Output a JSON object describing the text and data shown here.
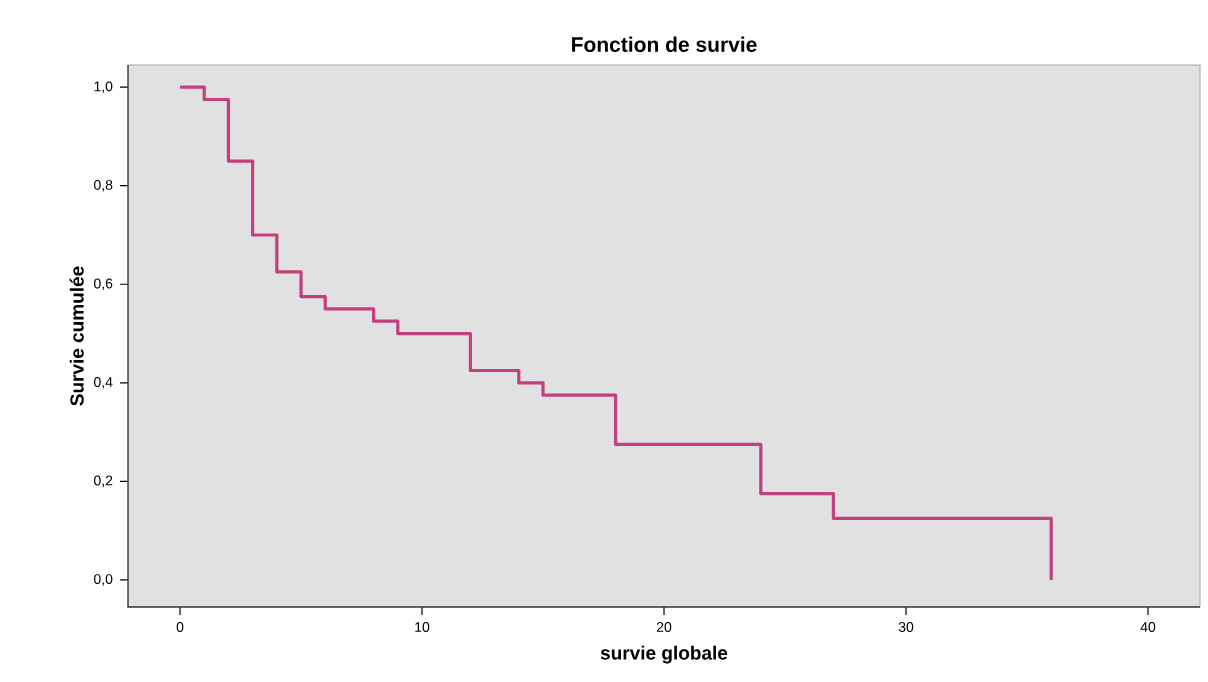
{
  "chart_data": {
    "type": "step",
    "title": "Fonction de survie",
    "xlabel": "survie globale",
    "ylabel": "Survie cumulée",
    "x": [
      0,
      1,
      2,
      3,
      4,
      5,
      6,
      8,
      9,
      12,
      14,
      15,
      18,
      24,
      27,
      36
    ],
    "series": [
      {
        "color": "#c2407f",
        "values": [
          1.0,
          0.975,
          0.85,
          0.7,
          0.625,
          0.575,
          0.55,
          0.525,
          0.5,
          0.425,
          0.4,
          0.375,
          0.275,
          0.175,
          0.125,
          0.0
        ]
      }
    ],
    "xlim": [
      -2.15,
      42.15
    ],
    "ylim": [
      -0.055,
      1.045
    ],
    "xticks": [
      0,
      10,
      20,
      30,
      40
    ],
    "yticks": [
      {
        "value": 0,
        "label": "0,0"
      },
      {
        "value": 0.2,
        "label": "0,2"
      },
      {
        "value": 0.4,
        "label": "0,4"
      },
      {
        "value": 0.6,
        "label": "0,6"
      },
      {
        "value": 0.8,
        "label": "0,8"
      },
      {
        "value": 1.0,
        "label": "1,0"
      }
    ],
    "grid": false
  }
}
